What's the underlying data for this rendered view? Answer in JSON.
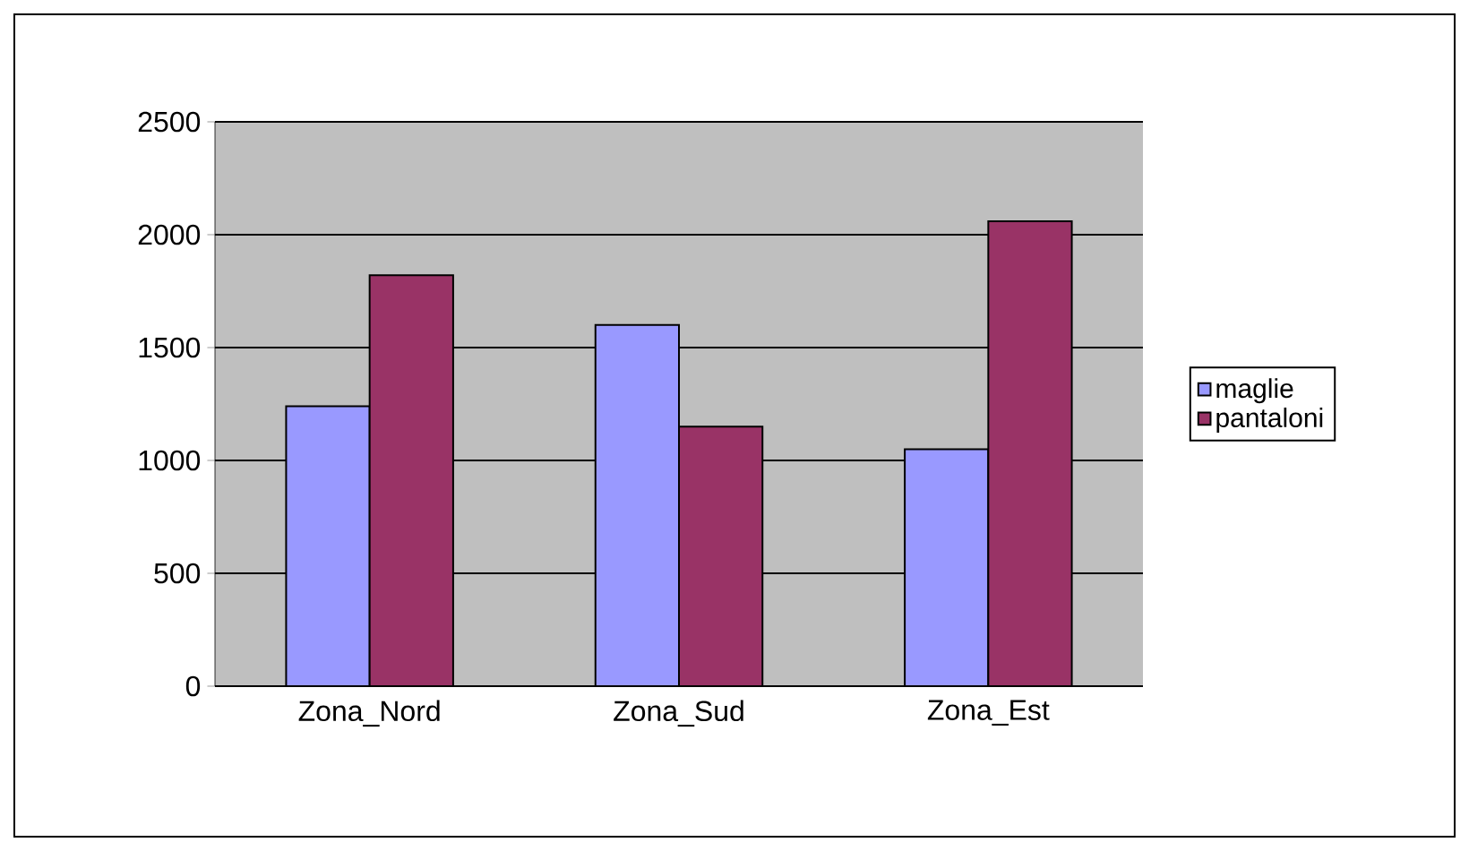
{
  "chart_data": {
    "type": "bar",
    "categories": [
      "Zona_Nord",
      "Zona_Sud",
      "Zona_Est"
    ],
    "series": [
      {
        "name": "maglie",
        "color": "#9999ff",
        "values": [
          1240,
          1600,
          1050
        ]
      },
      {
        "name": "pantaloni",
        "color": "#993366",
        "values": [
          1820,
          1150,
          2060
        ]
      }
    ],
    "ylim": [
      0,
      2500
    ],
    "yticks": [
      0,
      500,
      1000,
      1500,
      2000,
      2500
    ],
    "grid": "y",
    "legend": "right"
  }
}
